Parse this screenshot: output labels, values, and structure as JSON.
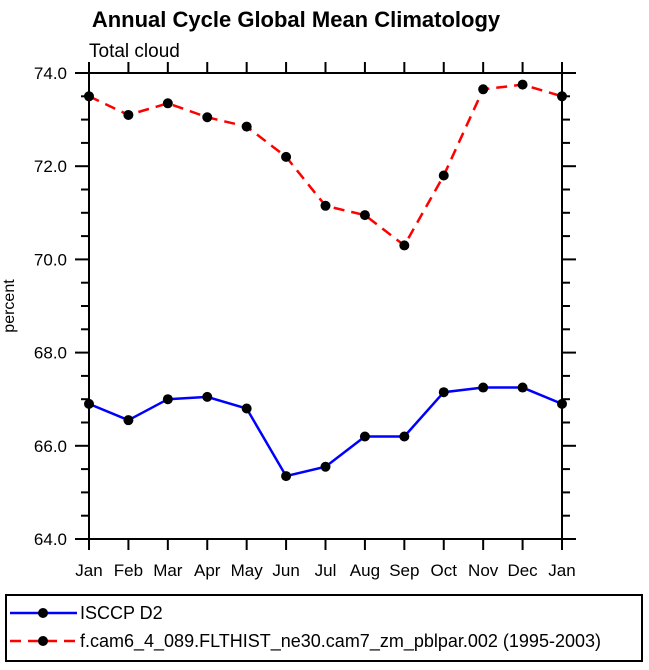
{
  "title": "Annual Cycle Global Mean Climatology",
  "subtitle": "Total cloud",
  "colors": {
    "axis": "#000000",
    "background": "#ffffff",
    "obs_line": "#0000ff",
    "model_line": "#ff0000",
    "marker": "#000000"
  },
  "chart_data": {
    "type": "line",
    "title": "Annual Cycle Global Mean Climatology",
    "subtitle": "Total cloud",
    "xlabel": "",
    "ylabel": "percent",
    "x": [
      "Jan",
      "Feb",
      "Mar",
      "Apr",
      "May",
      "Jun",
      "Jul",
      "Aug",
      "Sep",
      "Oct",
      "Nov",
      "Dec",
      "Jan"
    ],
    "ylim": [
      64.0,
      74.0
    ],
    "ytick_major_step": 2.0,
    "ytick_minor_step": 0.5,
    "ytick_labels": [
      "64.0",
      "66.0",
      "68.0",
      "70.0",
      "72.0",
      "74.0"
    ],
    "grid": false,
    "legend_position": "bottom-box",
    "series": [
      {
        "name": "ISCCP D2",
        "color": "#0000ff",
        "style": "solid",
        "marker_color": "#000000",
        "values": [
          66.9,
          66.55,
          67.0,
          67.05,
          66.8,
          65.35,
          65.55,
          66.2,
          66.2,
          67.15,
          67.25,
          67.25,
          66.9
        ]
      },
      {
        "name": "f.cam6_4_089.FLTHIST_ne30.cam7_zm_pblpar.002 (1995-2003)",
        "color": "#ff0000",
        "style": "dashed",
        "marker_color": "#000000",
        "values": [
          73.5,
          73.1,
          73.35,
          73.05,
          72.85,
          72.2,
          71.15,
          70.95,
          70.3,
          71.8,
          73.65,
          73.75,
          73.5
        ]
      }
    ]
  }
}
